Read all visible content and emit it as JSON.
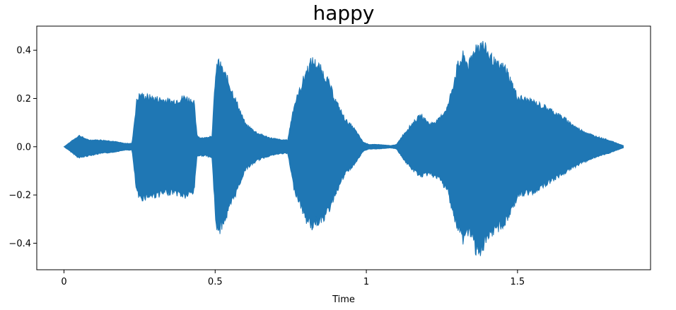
{
  "chart_data": {
    "type": "area",
    "title": "happy",
    "xlabel": "Time",
    "ylabel": "",
    "xlim": [
      -0.09,
      1.94
    ],
    "ylim": [
      -0.51,
      0.5
    ],
    "x_ticks": [
      {
        "value": 0,
        "label": "0"
      },
      {
        "value": 0.5,
        "label": "0.5"
      },
      {
        "value": 1,
        "label": "1"
      },
      {
        "value": 1.5,
        "label": "1.5"
      }
    ],
    "y_ticks": [
      {
        "value": 0.4,
        "label": "0.4"
      },
      {
        "value": 0.2,
        "label": "0.2"
      },
      {
        "value": 0.0,
        "label": "0.0"
      },
      {
        "value": -0.2,
        "label": "−0.2"
      },
      {
        "value": -0.4,
        "label": "−0.4"
      }
    ],
    "grid": false,
    "series": [
      {
        "color": "#1f77b4",
        "x": [
          0,
          0.02,
          0.05,
          0.08,
          0.12,
          0.16,
          0.2,
          0.225,
          0.24,
          0.25,
          0.28,
          0.32,
          0.36,
          0.4,
          0.43,
          0.44,
          0.45,
          0.47,
          0.49,
          0.5,
          0.51,
          0.52,
          0.54,
          0.57,
          0.6,
          0.64,
          0.68,
          0.72,
          0.74,
          0.76,
          0.78,
          0.8,
          0.82,
          0.84,
          0.87,
          0.9,
          0.93,
          0.96,
          0.99,
          1.01,
          1.04,
          1.08,
          1.1,
          1.12,
          1.15,
          1.18,
          1.21,
          1.24,
          1.27,
          1.3,
          1.32,
          1.34,
          1.36,
          1.38,
          1.4,
          1.43,
          1.46,
          1.5,
          1.55,
          1.6,
          1.65,
          1.7,
          1.75,
          1.8,
          1.85
        ],
        "upper": [
          0,
          0.02,
          0.05,
          0.03,
          0.03,
          0.025,
          0.015,
          0.015,
          0.2,
          0.23,
          0.22,
          0.21,
          0.2,
          0.22,
          0.2,
          0.05,
          0.04,
          0.04,
          0.05,
          0.3,
          0.38,
          0.35,
          0.3,
          0.2,
          0.1,
          0.06,
          0.04,
          0.03,
          0.03,
          0.18,
          0.25,
          0.33,
          0.38,
          0.36,
          0.3,
          0.2,
          0.12,
          0.08,
          0.02,
          0.01,
          0.01,
          0.005,
          0.01,
          0.05,
          0.1,
          0.14,
          0.1,
          0.12,
          0.18,
          0.35,
          0.4,
          0.36,
          0.44,
          0.46,
          0.42,
          0.36,
          0.35,
          0.22,
          0.2,
          0.17,
          0.13,
          0.08,
          0.05,
          0.03,
          0.005
        ],
        "lower": [
          0,
          -0.02,
          -0.05,
          -0.04,
          -0.03,
          -0.025,
          -0.015,
          -0.015,
          -0.2,
          -0.23,
          -0.22,
          -0.21,
          -0.2,
          -0.22,
          -0.2,
          -0.04,
          -0.04,
          -0.04,
          -0.05,
          -0.3,
          -0.39,
          -0.35,
          -0.3,
          -0.2,
          -0.1,
          -0.06,
          -0.04,
          -0.03,
          -0.03,
          -0.18,
          -0.25,
          -0.32,
          -0.35,
          -0.33,
          -0.3,
          -0.2,
          -0.12,
          -0.08,
          -0.02,
          -0.01,
          -0.01,
          -0.005,
          -0.01,
          -0.05,
          -0.1,
          -0.13,
          -0.12,
          -0.14,
          -0.2,
          -0.36,
          -0.41,
          -0.37,
          -0.45,
          -0.46,
          -0.42,
          -0.36,
          -0.34,
          -0.22,
          -0.2,
          -0.16,
          -0.12,
          -0.08,
          -0.05,
          -0.03,
          -0.005
        ]
      }
    ]
  }
}
